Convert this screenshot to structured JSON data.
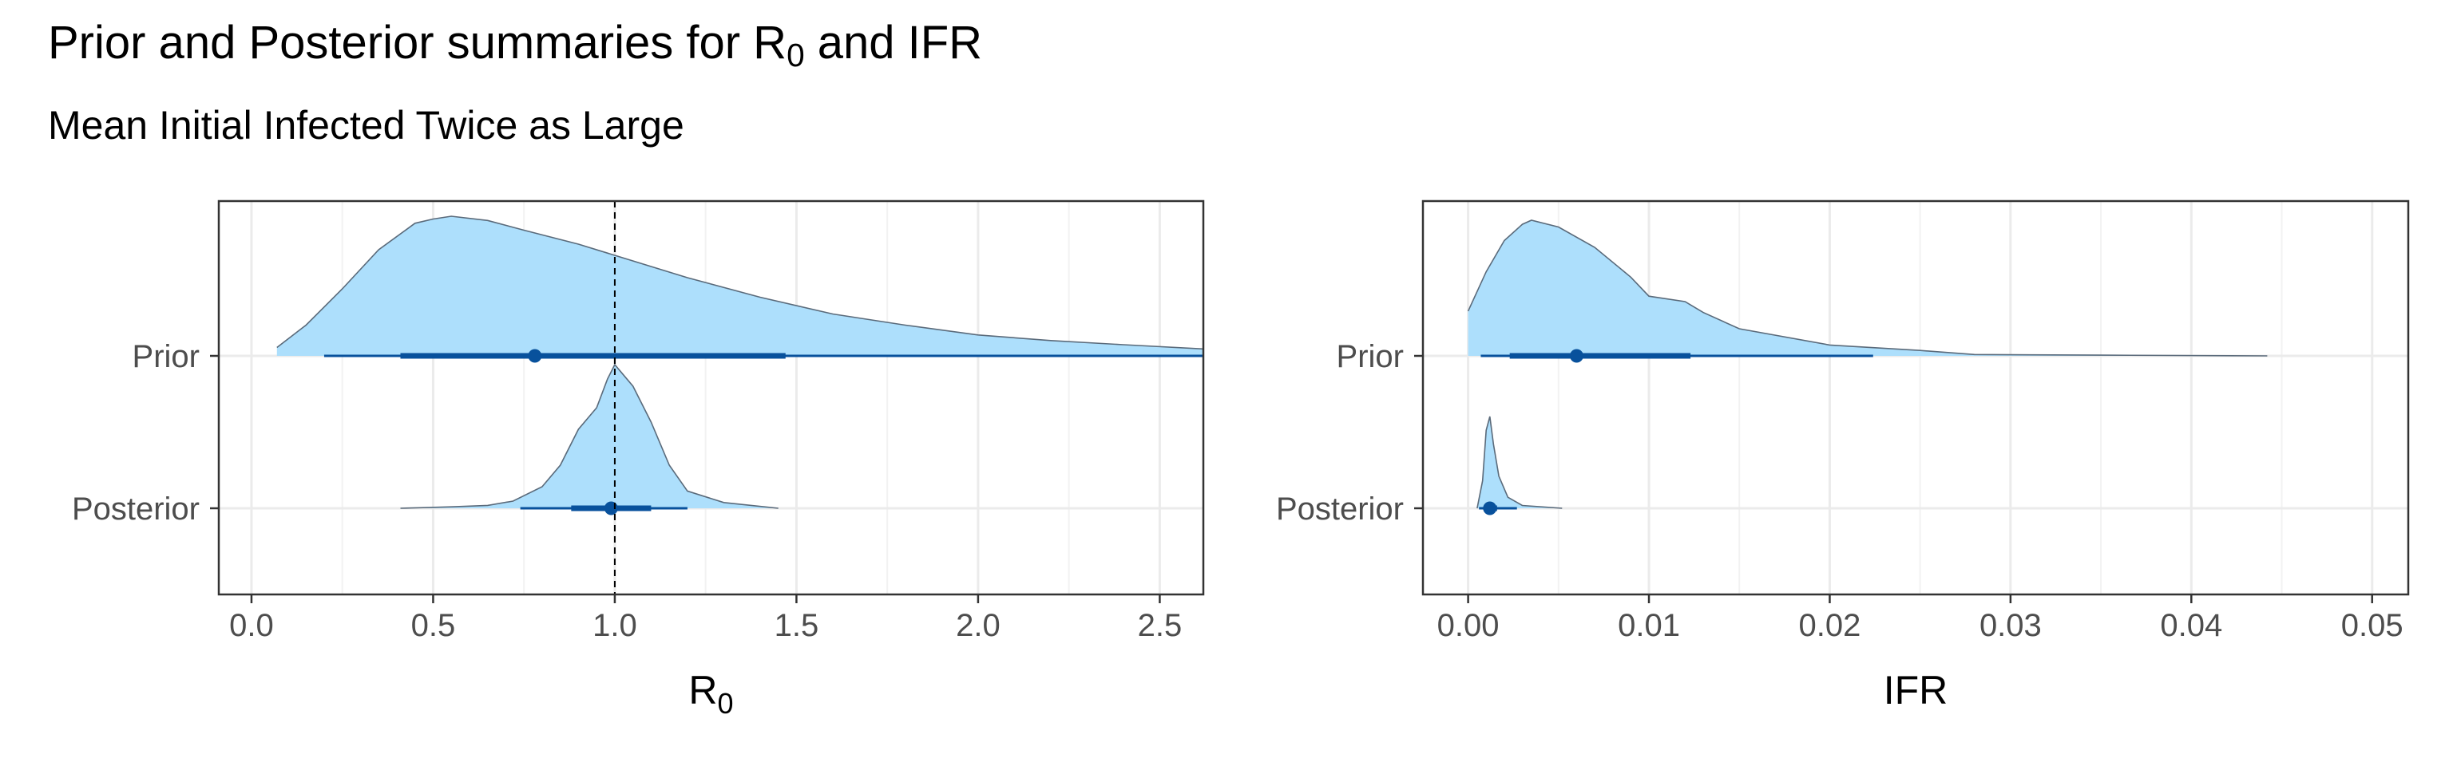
{
  "title": {
    "main": "Prior and Posterior summaries for R",
    "sub": "0",
    "tail": " and IFR"
  },
  "subtitle": "Mean Initial Infected Twice as Large",
  "colors": {
    "fill": "#ADDFFC",
    "outline": "#5a6a7a",
    "interval": "#08519C",
    "grid": "#ebebeb",
    "panel_border": "#333333",
    "ref_line": "#000000"
  },
  "chart_data": [
    {
      "type": "density-interval",
      "panel": "R0",
      "xlabel": {
        "main": "R",
        "sub": "0"
      },
      "xlim": [
        -0.09,
        2.62
      ],
      "xticks": [
        0.0,
        0.5,
        1.0,
        1.5,
        2.0,
        2.5
      ],
      "xtick_labels": [
        "0.0",
        "0.5",
        "1.0",
        "1.5",
        "2.0",
        "2.5"
      ],
      "reference_line": 1.0,
      "categories": [
        "Prior",
        "Posterior"
      ],
      "series": [
        {
          "name": "Prior",
          "density": [
            [
              0.07,
              0.06
            ],
            [
              0.15,
              0.22
            ],
            [
              0.25,
              0.48
            ],
            [
              0.35,
              0.76
            ],
            [
              0.45,
              0.95
            ],
            [
              0.5,
              0.98
            ],
            [
              0.55,
              1.0
            ],
            [
              0.65,
              0.97
            ],
            [
              0.75,
              0.9
            ],
            [
              0.9,
              0.8
            ],
            [
              1.0,
              0.72
            ],
            [
              1.2,
              0.56
            ],
            [
              1.4,
              0.42
            ],
            [
              1.6,
              0.3
            ],
            [
              1.8,
              0.22
            ],
            [
              2.0,
              0.15
            ],
            [
              2.2,
              0.11
            ],
            [
              2.4,
              0.08
            ],
            [
              2.62,
              0.05
            ]
          ],
          "median": 0.78,
          "interval_66": [
            0.41,
            1.47
          ],
          "interval_95": [
            0.2,
            2.62
          ]
        },
        {
          "name": "Posterior",
          "density": [
            [
              0.41,
              0.0
            ],
            [
              0.55,
              0.01
            ],
            [
              0.65,
              0.02
            ],
            [
              0.72,
              0.05
            ],
            [
              0.8,
              0.15
            ],
            [
              0.85,
              0.3
            ],
            [
              0.9,
              0.55
            ],
            [
              0.95,
              0.7
            ],
            [
              0.98,
              0.9
            ],
            [
              1.0,
              1.0
            ],
            [
              1.05,
              0.85
            ],
            [
              1.1,
              0.6
            ],
            [
              1.15,
              0.3
            ],
            [
              1.2,
              0.12
            ],
            [
              1.3,
              0.04
            ],
            [
              1.45,
              0.0
            ]
          ],
          "median": 0.99,
          "interval_66": [
            0.88,
            1.1
          ],
          "interval_95": [
            0.74,
            1.2
          ]
        }
      ]
    },
    {
      "type": "density-interval",
      "panel": "IFR",
      "xlabel": {
        "main": "IFR",
        "sub": ""
      },
      "xlim": [
        -0.0025,
        0.052
      ],
      "xticks": [
        0.0,
        0.01,
        0.02,
        0.03,
        0.04,
        0.05
      ],
      "xtick_labels": [
        "0.00",
        "0.01",
        "0.02",
        "0.03",
        "0.04",
        "0.05"
      ],
      "reference_line": null,
      "categories": [
        "Prior",
        "Posterior"
      ],
      "series": [
        {
          "name": "Prior",
          "density": [
            [
              0.0,
              0.33
            ],
            [
              0.001,
              0.62
            ],
            [
              0.002,
              0.85
            ],
            [
              0.003,
              0.97
            ],
            [
              0.0035,
              1.0
            ],
            [
              0.005,
              0.95
            ],
            [
              0.007,
              0.8
            ],
            [
              0.009,
              0.58
            ],
            [
              0.01,
              0.44
            ],
            [
              0.012,
              0.4
            ],
            [
              0.013,
              0.32
            ],
            [
              0.015,
              0.2
            ],
            [
              0.02,
              0.08
            ],
            [
              0.025,
              0.04
            ],
            [
              0.028,
              0.01
            ],
            [
              0.035,
              0.005
            ],
            [
              0.0442,
              0.0
            ]
          ],
          "median": 0.006,
          "interval_66": [
            0.0023,
            0.0123
          ],
          "interval_95": [
            0.0007,
            0.0224
          ]
        },
        {
          "name": "Posterior",
          "density": [
            [
              0.0005,
              0.0
            ],
            [
              0.0008,
              0.3
            ],
            [
              0.001,
              0.85
            ],
            [
              0.0012,
              1.0
            ],
            [
              0.0014,
              0.7
            ],
            [
              0.0017,
              0.35
            ],
            [
              0.0022,
              0.12
            ],
            [
              0.003,
              0.03
            ],
            [
              0.0052,
              0.0
            ]
          ],
          "median": 0.0012,
          "interval_66": [
            0.0009,
            0.0016
          ],
          "interval_95": [
            0.0006,
            0.0027
          ]
        }
      ]
    }
  ]
}
